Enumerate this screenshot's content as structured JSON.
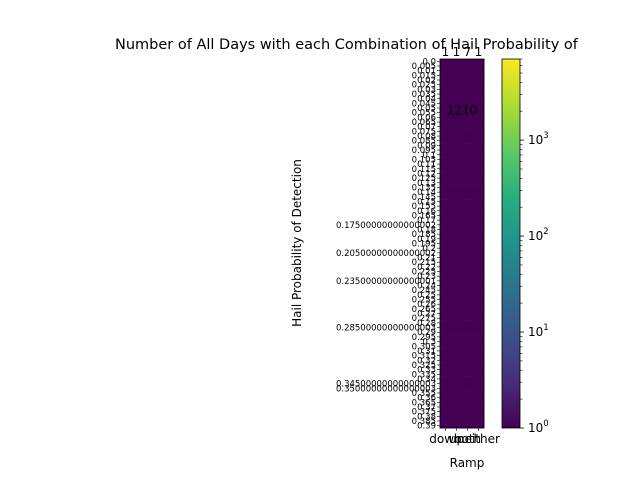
{
  "chart_data": {
    "type": "heatmap",
    "title": "Number of All Days with each Combination of Hail Probability of",
    "xlabel": "Ramp",
    "ylabel": "Hail Probability of Detection",
    "x_categories": [
      "down",
      "up",
      "both",
      "neither"
    ],
    "y_categories": [
      "0.0",
      "0.005",
      "0.01",
      "0.015",
      "0.02",
      "0.025",
      "0.03",
      "0.035",
      "0.04",
      "0.045",
      "0.05",
      "0.055",
      "0.06",
      "0.065",
      "0.07",
      "0.075",
      "0.08",
      "0.085",
      "0.09",
      "0.095",
      "0.1",
      "0.105",
      "0.11",
      "0.115",
      "0.12",
      "0.125",
      "0.13",
      "0.135",
      "0.14",
      "0.145",
      "0.15",
      "0.155",
      "0.16",
      "0.165",
      "0.17",
      "0.17500000000000002",
      "0.18",
      "0.185",
      "0.19",
      "0.195",
      "0.2",
      "0.20500000000000002",
      "0.21",
      "0.215",
      "0.22",
      "0.225",
      "0.23",
      "0.23500000000000001",
      "0.24",
      "0.245",
      "0.25",
      "0.255",
      "0.26",
      "0.265",
      "0.27",
      "0.275",
      "0.28",
      "0.28500000000000003",
      "0.29",
      "0.295",
      "0.3",
      "0.305",
      "0.31",
      "0.315",
      "0.32",
      "0.325",
      "0.33",
      "0.335",
      "0.34",
      "0.34500000000000003",
      "0.35000000000000003",
      "0.355",
      "0.36",
      "0.365",
      "0.37",
      "0.375",
      "0.38",
      "0.385",
      "0.39"
    ],
    "top_labels": [
      "1",
      "1",
      "7",
      "1"
    ],
    "highlight_cell_label": "1210",
    "colorbar": {
      "colormap": "viridis",
      "scale": "log",
      "range": [
        1,
        7000
      ],
      "ticks": [
        1,
        10,
        100,
        1000
      ],
      "tick_labels": [
        "10^0",
        "10^1",
        "10^2",
        "10^3"
      ]
    }
  }
}
